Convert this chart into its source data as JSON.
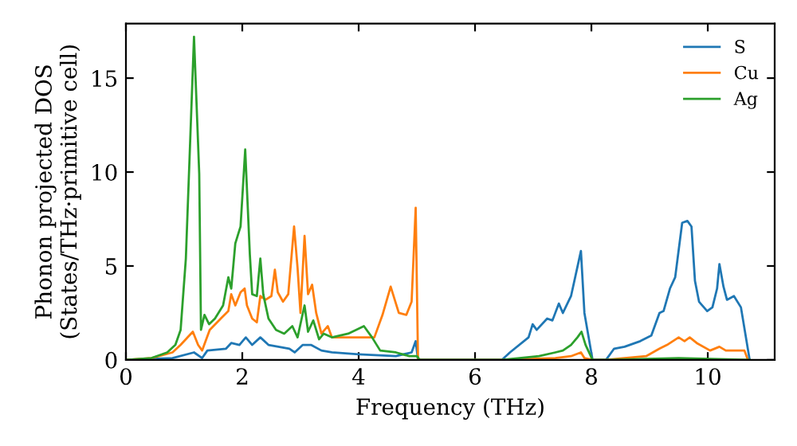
{
  "chart_data": {
    "type": "line",
    "xlabel": "Frequency (THz)",
    "ylabel": "Phonon projected DOS\n(States/THz·primitive cell)",
    "xlim": [
      0,
      11.15
    ],
    "ylim": [
      0,
      17.9
    ],
    "xticks": [
      0,
      2,
      4,
      6,
      8,
      10
    ],
    "yticks": [
      0,
      5,
      10,
      15
    ],
    "legend": "top right",
    "grid": false,
    "series": [
      {
        "name": "S",
        "color": "#1f77b4",
        "x": [
          0,
          0.8,
          1.17,
          1.31,
          1.4,
          1.72,
          1.81,
          1.95,
          2.06,
          2.17,
          2.31,
          2.45,
          2.81,
          2.9,
          3.04,
          3.18,
          3.36,
          3.54,
          4.0,
          4.64,
          4.91,
          4.98,
          5.02,
          6.46,
          6.6,
          6.92,
          6.99,
          7.06,
          7.24,
          7.33,
          7.44,
          7.51,
          7.65,
          7.82,
          7.88,
          8.02,
          8.25,
          8.39,
          8.57,
          8.84,
          9.03,
          9.17,
          9.24,
          9.35,
          9.44,
          9.56,
          9.65,
          9.72,
          9.78,
          9.85,
          9.99,
          10.08,
          10.16,
          10.2,
          10.27,
          10.33,
          10.45,
          10.57,
          10.72
        ],
        "values": [
          0,
          0.1,
          0.4,
          0.1,
          0.5,
          0.6,
          0.9,
          0.8,
          1.2,
          0.8,
          1.2,
          0.8,
          0.6,
          0.4,
          0.8,
          0.8,
          0.5,
          0.4,
          0.3,
          0.2,
          0.4,
          1.0,
          0,
          0,
          0.4,
          1.2,
          1.9,
          1.6,
          2.2,
          2.1,
          3.0,
          2.5,
          3.4,
          5.8,
          2.5,
          0,
          0,
          0.6,
          0.7,
          1.0,
          1.3,
          2.5,
          2.6,
          3.8,
          4.4,
          7.3,
          7.4,
          7.1,
          4.2,
          3.1,
          2.6,
          2.8,
          3.8,
          5.1,
          3.9,
          3.2,
          3.4,
          2.8,
          0
        ]
      },
      {
        "name": "Cu",
        "color": "#ff7f0e",
        "x": [
          0,
          0.44,
          0.8,
          0.94,
          1.15,
          1.24,
          1.31,
          1.44,
          1.63,
          1.76,
          1.81,
          1.88,
          1.97,
          2.04,
          2.08,
          2.17,
          2.25,
          2.31,
          2.4,
          2.5,
          2.56,
          2.61,
          2.7,
          2.79,
          2.89,
          2.95,
          3.0,
          3.07,
          3.13,
          3.2,
          3.27,
          3.36,
          3.47,
          3.54,
          4.27,
          4.41,
          4.55,
          4.69,
          4.82,
          4.91,
          4.98,
          5.02,
          6.46,
          7.38,
          7.65,
          7.82,
          7.88,
          8.02,
          8.25,
          8.94,
          9.17,
          9.3,
          9.5,
          9.6,
          9.69,
          9.81,
          10.04,
          10.2,
          10.31,
          10.63,
          10.69
        ],
        "values": [
          0,
          0.1,
          0.4,
          0.8,
          1.5,
          0.8,
          0.5,
          1.6,
          2.2,
          2.6,
          3.5,
          2.9,
          3.6,
          3.8,
          2.9,
          2.2,
          2.0,
          3.4,
          3.2,
          3.4,
          4.8,
          3.6,
          3.1,
          3.5,
          7.1,
          4.9,
          2.5,
          6.6,
          3.5,
          4.0,
          2.5,
          1.4,
          1.8,
          1.2,
          1.2,
          2.4,
          3.9,
          2.5,
          2.4,
          3.1,
          8.1,
          0,
          0,
          0.1,
          0.2,
          0.4,
          0.1,
          0,
          0,
          0.2,
          0.6,
          0.8,
          1.2,
          1.0,
          1.2,
          0.9,
          0.5,
          0.7,
          0.5,
          0.5,
          0
        ]
      },
      {
        "name": "Ag",
        "color": "#2ca02c",
        "x": [
          0,
          0.44,
          0.71,
          0.85,
          0.94,
          1.03,
          1.17,
          1.26,
          1.29,
          1.35,
          1.43,
          1.53,
          1.67,
          1.76,
          1.81,
          1.88,
          1.97,
          2.05,
          2.13,
          2.17,
          2.25,
          2.31,
          2.36,
          2.45,
          2.58,
          2.72,
          2.86,
          2.95,
          3.02,
          3.07,
          3.13,
          3.22,
          3.32,
          3.4,
          3.54,
          3.82,
          4.09,
          4.23,
          4.37,
          4.64,
          4.87,
          5.0,
          5.05,
          6.46,
          7.1,
          7.38,
          7.51,
          7.65,
          7.76,
          7.83,
          7.9,
          8.02,
          8.25,
          9.5,
          10.72
        ],
        "values": [
          0,
          0.1,
          0.4,
          0.8,
          1.6,
          5.4,
          17.2,
          9.9,
          1.6,
          2.4,
          1.9,
          2.2,
          2.9,
          4.4,
          3.8,
          6.2,
          7.1,
          11.2,
          5.6,
          3.5,
          3.4,
          5.4,
          3.5,
          2.2,
          1.6,
          1.4,
          1.8,
          1.2,
          2.2,
          2.9,
          1.5,
          2.1,
          1.1,
          1.4,
          1.2,
          1.4,
          1.8,
          1.2,
          0.5,
          0.4,
          0.2,
          0.2,
          0,
          0,
          0.2,
          0.4,
          0.5,
          0.8,
          1.2,
          1.5,
          0.8,
          0,
          0,
          0.1,
          0
        ]
      }
    ]
  }
}
